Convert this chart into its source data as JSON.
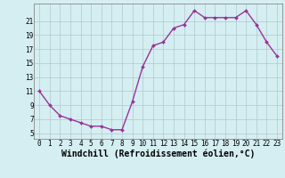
{
  "x": [
    0,
    1,
    2,
    3,
    4,
    5,
    6,
    7,
    8,
    9,
    10,
    11,
    12,
    13,
    14,
    15,
    16,
    17,
    18,
    19,
    20,
    21,
    22,
    23
  ],
  "y": [
    11,
    9,
    7.5,
    7,
    6.5,
    6,
    6,
    5.5,
    5.5,
    9.5,
    14.5,
    17.5,
    18,
    20,
    20.5,
    22.5,
    21.5,
    21.5,
    21.5,
    21.5,
    22.5,
    20.5,
    18,
    16
  ],
  "line_color": "#993399",
  "marker": "D",
  "marker_size": 2,
  "background_color": "#d5eef2",
  "grid_color": "#b0c8cc",
  "xlabel": "Windchill (Refroidissement éolien,°C)",
  "xlabel_fontsize": 7,
  "ylabel_ticks": [
    5,
    7,
    9,
    11,
    13,
    15,
    17,
    19,
    21
  ],
  "xlim": [
    -0.5,
    23.5
  ],
  "ylim": [
    4.2,
    23.5
  ],
  "xtick_labels": [
    "0",
    "1",
    "2",
    "3",
    "4",
    "5",
    "6",
    "7",
    "8",
    "9",
    "10",
    "11",
    "12",
    "13",
    "14",
    "15",
    "16",
    "17",
    "18",
    "19",
    "20",
    "21",
    "22",
    "23"
  ],
  "tick_fontsize": 5.5,
  "spine_color": "#888888",
  "line_width": 1.0
}
